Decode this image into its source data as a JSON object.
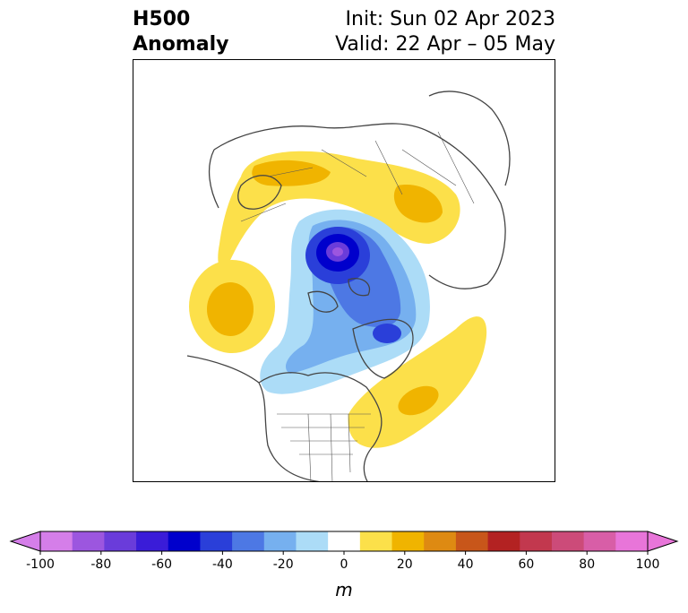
{
  "header": {
    "title_line1": "H500",
    "title_line2": "Anomaly",
    "init_text": "Init: Sun 02 Apr 2023",
    "valid_text": "Valid: 22 Apr – 05 May"
  },
  "map": {
    "projection": "polar stereographic, Northern Hemisphere",
    "anomaly_features": [
      {
        "sign": "negative",
        "peak_m": -90,
        "region": "Arctic Ocean / north of Laptev Sea"
      },
      {
        "sign": "negative",
        "peak_m": -50,
        "region": "Canadian Arctic / Hudson Bay"
      },
      {
        "sign": "negative",
        "peak_m": -20,
        "region": "Western Canada"
      },
      {
        "sign": "positive",
        "peak_m": 25,
        "region": "Northern Europe / Scandinavia"
      },
      {
        "sign": "positive",
        "peak_m": 30,
        "region": "Northern Russia"
      },
      {
        "sign": "positive",
        "peak_m": 25,
        "region": "Gulf of Alaska / NE Pacific"
      },
      {
        "sign": "positive",
        "peak_m": 25,
        "region": "Western Atlantic / US East Coast"
      }
    ]
  },
  "colorbar": {
    "ticks": [
      "-100",
      "-80",
      "-60",
      "-40",
      "-20",
      "0",
      "20",
      "40",
      "60",
      "80",
      "100"
    ],
    "levels": [
      -100,
      -90,
      -80,
      -70,
      -60,
      -50,
      -40,
      -30,
      -20,
      -10,
      10,
      20,
      30,
      40,
      50,
      60,
      70,
      80,
      90,
      100
    ],
    "colors": [
      "#d57ee9",
      "#9c56df",
      "#6a3cda",
      "#3a1cd8",
      "#0000cc",
      "#2a3fd9",
      "#4d78e4",
      "#76b0ef",
      "#acdcf7",
      "#ffffff",
      "#fce04a",
      "#f0b400",
      "#de8a12",
      "#c8561a",
      "#b32222",
      "#c2384e",
      "#cc4b79",
      "#d85ea7",
      "#e875d9"
    ],
    "under_color": "#d57ee9",
    "over_color": "#e875d9",
    "unit": "m"
  }
}
